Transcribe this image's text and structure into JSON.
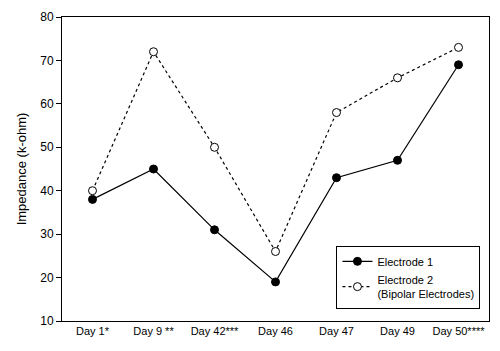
{
  "chart_data": {
    "type": "line",
    "y_label": "Impedance (k-ohm)",
    "categories": [
      "Day 1*",
      "Day 9 **",
      "Day 42***",
      "Day 46",
      "Day 47",
      "Day 49",
      "Day 50****"
    ],
    "series": [
      {
        "name": "Electrode 1",
        "color": "#000000",
        "marker": "circle",
        "line_style": "solid",
        "values": [
          38,
          45,
          31,
          19,
          43,
          47,
          69
        ]
      },
      {
        "name": "Electrode 2\n(Bipolar Electrodes)",
        "color": "#000000",
        "marker": "circle-open",
        "line_style": "dot",
        "values": [
          40,
          72,
          50,
          26,
          58,
          66,
          73
        ]
      }
    ],
    "ylim": [
      10,
      80
    ],
    "yticks": [
      10,
      20,
      30,
      40,
      50,
      60,
      70,
      80
    ],
    "grid": false,
    "legend": "lower right"
  }
}
